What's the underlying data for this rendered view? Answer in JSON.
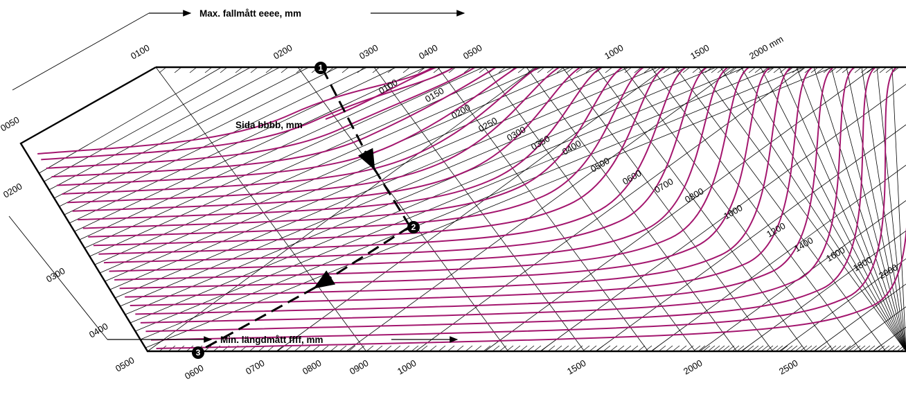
{
  "diagram": {
    "top_axis_title": "Max. fallmått eeee, mm",
    "bottom_axis_title": "Min. längdmått ffff, mm",
    "curve_family_label": "Sida bbbb, mm",
    "top_tick_labels": [
      "0100",
      "0200",
      "0300",
      "0400",
      "0500",
      "1000",
      "1500",
      "2000 mm"
    ],
    "left_tick_labels": [
      "0050",
      "0200",
      "0300",
      "0400",
      "0500"
    ],
    "bottom_tick_labels": [
      "0600",
      "0700",
      "0800",
      "0900",
      "1000",
      "1500",
      "2000",
      "2500"
    ],
    "curve_labels": [
      "0100",
      "0150",
      "0200",
      "0250",
      "0300",
      "0350",
      "0400",
      "0500",
      "0600",
      "0700",
      "0800",
      "1000",
      "1200",
      "1400",
      "1600",
      "1800",
      "2000"
    ],
    "markers": [
      "1",
      "2",
      "3"
    ],
    "colors": {
      "curve": "#a3166e",
      "lines": "#000000",
      "marker_fill": "#000000"
    }
  }
}
